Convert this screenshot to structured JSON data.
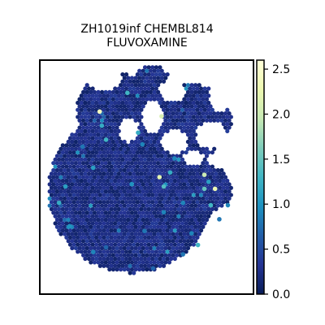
{
  "chart_data": {
    "type": "scatter",
    "subtype": "hexagonal spatial spot plot",
    "title_lines": [
      "ZH1019inf CHEMBL814",
      "FLUVOXAMINE"
    ],
    "xlabel": "",
    "ylabel": "",
    "axes_ticks_visible": false,
    "grid": false,
    "colorbar": {
      "position": "right",
      "colormap": "YlGnBu",
      "range": [
        0.0,
        2.6
      ],
      "ticks": [
        0.0,
        0.5,
        1.0,
        1.5,
        2.0,
        2.5
      ],
      "tick_labels": [
        "0.0",
        "0.5",
        "1.0",
        "1.5",
        "2.0",
        "2.5"
      ]
    },
    "spots_background_value": 0.08,
    "spots_note": "Dense field of hexagonal spots forming a roughly circular tissue section; most values near 0-0.4, scattered spots up to ~2.5",
    "highlighted_spots": [
      {
        "x": 0.28,
        "y": 0.78,
        "value": 2.4
      },
      {
        "x": 0.57,
        "y": 0.76,
        "value": 2.1
      },
      {
        "x": 0.82,
        "y": 0.45,
        "value": 2.3
      },
      {
        "x": 0.56,
        "y": 0.5,
        "value": 2.2
      },
      {
        "x": 0.77,
        "y": 0.51,
        "value": 2.0
      },
      {
        "x": 0.41,
        "y": 0.86,
        "value": 1.3
      },
      {
        "x": 0.29,
        "y": 0.72,
        "value": 1.2
      },
      {
        "x": 0.31,
        "y": 0.66,
        "value": 1.3
      },
      {
        "x": 0.46,
        "y": 0.69,
        "value": 1.2
      },
      {
        "x": 0.25,
        "y": 0.54,
        "value": 1.1
      },
      {
        "x": 0.61,
        "y": 0.52,
        "value": 1.2
      },
      {
        "x": 0.58,
        "y": 0.46,
        "value": 1.4
      },
      {
        "x": 0.77,
        "y": 0.45,
        "value": 1.5
      },
      {
        "x": 0.79,
        "y": 0.48,
        "value": 1.1
      },
      {
        "x": 0.8,
        "y": 0.38,
        "value": 1.3
      },
      {
        "x": 0.12,
        "y": 0.46,
        "value": 1.1
      },
      {
        "x": 0.09,
        "y": 0.39,
        "value": 1.2
      },
      {
        "x": 0.14,
        "y": 0.29,
        "value": 1.0
      },
      {
        "x": 0.43,
        "y": 0.47,
        "value": 1.0
      },
      {
        "x": 0.58,
        "y": 0.35,
        "value": 0.9
      },
      {
        "x": 0.67,
        "y": 0.39,
        "value": 0.9
      },
      {
        "x": 0.74,
        "y": 0.21,
        "value": 1.3
      },
      {
        "x": 0.71,
        "y": 0.26,
        "value": 0.9
      },
      {
        "x": 0.25,
        "y": 0.18,
        "value": 0.9
      },
      {
        "x": 0.67,
        "y": 0.17,
        "value": 0.8
      },
      {
        "x": 0.31,
        "y": 0.2,
        "value": 0.7
      },
      {
        "x": 0.53,
        "y": 0.11,
        "value": 0.7
      },
      {
        "x": 0.49,
        "y": 0.27,
        "value": 0.8
      },
      {
        "x": 0.2,
        "y": 0.63,
        "value": 0.8
      },
      {
        "x": 0.48,
        "y": 0.64,
        "value": 0.9
      },
      {
        "x": 0.63,
        "y": 0.58,
        "value": 0.9
      },
      {
        "x": 0.88,
        "y": 0.38,
        "value": 0.9
      },
      {
        "x": 0.84,
        "y": 0.32,
        "value": 0.8
      }
    ]
  }
}
